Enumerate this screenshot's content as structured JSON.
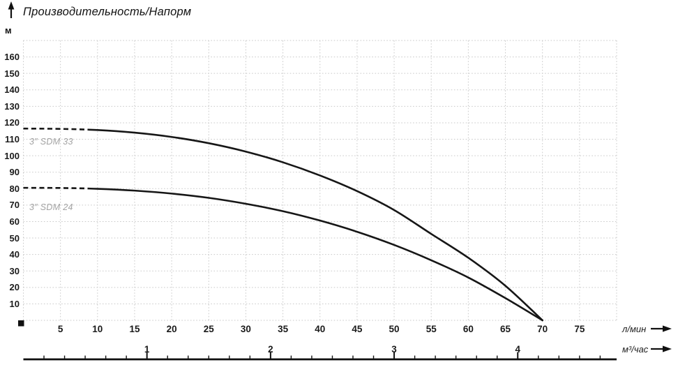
{
  "chart_data": {
    "type": "line",
    "title": "Производительность/Напорм",
    "y_axis": {
      "label": "м",
      "min": 0,
      "max": 170,
      "gridline_step": 10,
      "tick_labels": [
        10,
        20,
        30,
        40,
        50,
        60,
        70,
        80,
        90,
        100,
        110,
        120,
        130,
        140,
        150,
        160
      ]
    },
    "x_axis_primary": {
      "label": "л/мин",
      "min": 0,
      "max": 80,
      "gridline_step": 5,
      "tick_labels": [
        5,
        10,
        15,
        20,
        25,
        30,
        35,
        40,
        45,
        50,
        55,
        60,
        65,
        70,
        75
      ]
    },
    "x_axis_secondary": {
      "label": "м³/час",
      "tick_labels": [
        1,
        2,
        3,
        4
      ],
      "lmin_per_unit": 16.6667,
      "minor_ticks_per_unit": 6
    },
    "series": [
      {
        "name": "3″ SDM 33",
        "dashed_until_q": 8.8,
        "points": [
          [
            0,
            116.5
          ],
          [
            5,
            116.3
          ],
          [
            10,
            115.6
          ],
          [
            15,
            114.0
          ],
          [
            20,
            111.4
          ],
          [
            25,
            107.6
          ],
          [
            30,
            102.5
          ],
          [
            35,
            96.0
          ],
          [
            40,
            88.0
          ],
          [
            45,
            78.5
          ],
          [
            50,
            67.0
          ],
          [
            55,
            52.5
          ],
          [
            60,
            38.0
          ],
          [
            65,
            21.0
          ],
          [
            70,
            0
          ]
        ]
      },
      {
        "name": "3″ SDM 24",
        "dashed_until_q": 8.8,
        "points": [
          [
            0,
            80.5
          ],
          [
            5,
            80.4
          ],
          [
            10,
            79.9
          ],
          [
            15,
            78.8
          ],
          [
            20,
            77.0
          ],
          [
            25,
            74.4
          ],
          [
            30,
            70.8
          ],
          [
            35,
            66.3
          ],
          [
            40,
            60.6
          ],
          [
            45,
            53.8
          ],
          [
            50,
            45.8
          ],
          [
            55,
            36.5
          ],
          [
            60,
            26.0
          ],
          [
            65,
            13.5
          ],
          [
            70,
            0
          ]
        ]
      }
    ],
    "grid": true,
    "legend_position": "on-curve",
    "colors": {
      "curve": "#161616",
      "grid": "#c9c9c9",
      "curve_label": "#a3a3a3",
      "text": "#1a1a1a",
      "axis_line": "#111111"
    }
  }
}
